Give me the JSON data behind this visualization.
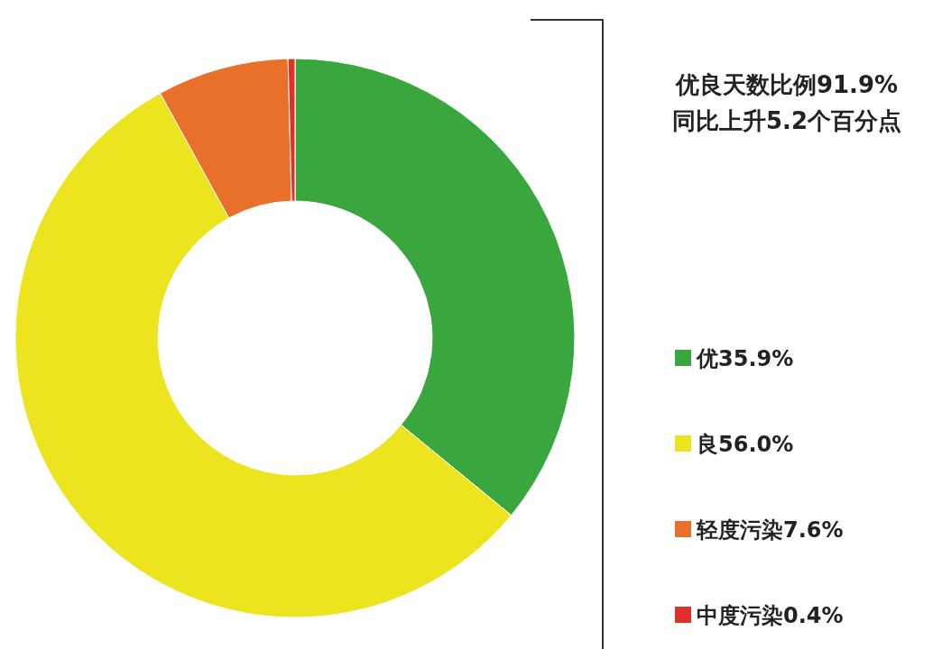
{
  "chart_data": {
    "type": "donut",
    "title": "优良天数比例91.9%",
    "subtitle": "同比上升5.2个百分点",
    "categories": [
      "优35.9%",
      "良56.0%",
      "轻度污染7.6%",
      "中度污染0.4%"
    ],
    "values": [
      35.9,
      56.0,
      7.6,
      0.4
    ],
    "colors": [
      "#3aa63e",
      "#ece41f",
      "#e9702a",
      "#e0302a"
    ],
    "legend": "right"
  }
}
